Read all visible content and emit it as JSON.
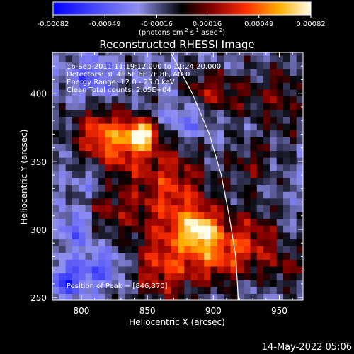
{
  "chart_data": {
    "type": "heatmap",
    "title": "Reconstructed RHESSI Image",
    "xlabel": "Heliocentric X (arcsec)",
    "ylabel": "Heliocentric Y (arcsec)",
    "xlim": [
      778,
      968
    ],
    "ylim": [
      248,
      430
    ],
    "x_ticks": [
      800,
      850,
      900,
      950
    ],
    "y_ticks": [
      250,
      300,
      350,
      400
    ],
    "colorbar": {
      "ticks": [
        "-0.00082",
        "-0.00049",
        "-0.00016",
        "0.00016",
        "0.00049",
        "0.00082"
      ],
      "tick_values": [
        -0.00082,
        -0.00049,
        -0.00016,
        0.00016,
        0.00049,
        0.00082
      ],
      "range": [
        -0.00082,
        0.00082
      ],
      "unit_label_parts": [
        "(photons cm",
        "-2",
        " s",
        "-1",
        " asec",
        "-2",
        ")"
      ]
    },
    "info_lines": [
      "16-Sep-2011 11:19:12.000 to 11:24:20.000",
      "Detectors: 3F 4F 5F 6F 7F 8F, Att 0",
      "Energy Range: 12.0 - 25.0 keV",
      "Clean     Total counts: 2.05E+04"
    ],
    "peak_label": "Position of Peak = [846,370]",
    "peak": {
      "x": 846,
      "y": 370
    },
    "timestamp": "14-May-2022 05:06",
    "sources": [
      {
        "x": 846,
        "y": 370,
        "sx": 7,
        "sy": 6,
        "amp": 0.00082
      },
      {
        "x": 832,
        "y": 362,
        "sx": 18,
        "sy": 16,
        "amp": 0.0005
      },
      {
        "x": 812,
        "y": 372,
        "sx": 14,
        "sy": 12,
        "amp": 0.00036
      },
      {
        "x": 868,
        "y": 332,
        "sx": 18,
        "sy": 22,
        "amp": 0.0004
      },
      {
        "x": 822,
        "y": 315,
        "sx": 16,
        "sy": 14,
        "amp": 0.0003
      },
      {
        "x": 890,
        "y": 300,
        "sx": 9,
        "sy": 8,
        "amp": 0.0006
      },
      {
        "x": 884,
        "y": 292,
        "sx": 24,
        "sy": 22,
        "amp": 0.00044
      },
      {
        "x": 858,
        "y": 268,
        "sx": 16,
        "sy": 16,
        "amp": 0.00032
      },
      {
        "x": 906,
        "y": 280,
        "sx": 14,
        "sy": 12,
        "amp": 0.0003
      },
      {
        "x": 932,
        "y": 292,
        "sx": 14,
        "sy": 16,
        "amp": 0.00034
      },
      {
        "x": 955,
        "y": 272,
        "sx": 10,
        "sy": 10,
        "amp": 0.00024
      },
      {
        "x": 928,
        "y": 348,
        "sx": 12,
        "sy": 12,
        "amp": 0.00024
      },
      {
        "x": 912,
        "y": 398,
        "sx": 18,
        "sy": 12,
        "amp": 0.00026
      },
      {
        "x": 952,
        "y": 396,
        "sx": 12,
        "sy": 22,
        "amp": 0.00024
      },
      {
        "x": 892,
        "y": 404,
        "sx": 10,
        "sy": 10,
        "amp": 0.00022
      },
      {
        "x": 815,
        "y": 272,
        "sx": 14,
        "sy": 10,
        "amp": -0.0003
      },
      {
        "x": 788,
        "y": 262,
        "sx": 10,
        "sy": 8,
        "amp": -0.0004
      },
      {
        "x": 808,
        "y": 412,
        "sx": 12,
        "sy": 10,
        "amp": -0.00032
      },
      {
        "x": 796,
        "y": 302,
        "sx": 10,
        "sy": 10,
        "amp": -0.0003
      },
      {
        "x": 878,
        "y": 380,
        "sx": 14,
        "sy": 10,
        "amp": -0.00026
      },
      {
        "x": 808,
        "y": 334,
        "sx": 10,
        "sy": 8,
        "amp": -0.0002
      }
    ],
    "limb_curve": [
      [
        866,
        433
      ],
      [
        884,
        400
      ],
      [
        897,
        370
      ],
      [
        906,
        340
      ],
      [
        912,
        310
      ],
      [
        917,
        280
      ],
      [
        919,
        248
      ]
    ],
    "limb_color": "#ffffff"
  }
}
